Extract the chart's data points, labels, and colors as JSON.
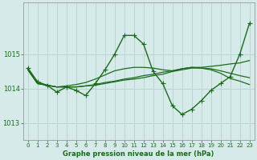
{
  "background_color": "#d6eaea",
  "grid_color": "#b8d4d4",
  "line_color": "#1a6b1a",
  "title": "Graphe pression niveau de la mer (hPa)",
  "xlim": [
    -0.5,
    23.5
  ],
  "ylim": [
    1012.5,
    1016.5
  ],
  "yticks": [
    1013,
    1014,
    1015
  ],
  "xticks": [
    0,
    1,
    2,
    3,
    4,
    5,
    6,
    7,
    8,
    9,
    10,
    11,
    12,
    13,
    14,
    15,
    16,
    17,
    18,
    19,
    20,
    21,
    22,
    23
  ],
  "series": [
    {
      "y": [
        1014.6,
        1014.2,
        1014.1,
        1013.9,
        1014.05,
        1013.95,
        1013.8,
        1014.15,
        1014.55,
        1015.0,
        1015.55,
        1015.55,
        1015.3,
        1014.5,
        1014.15,
        1013.5,
        1013.25,
        1013.4,
        1013.65,
        1013.95,
        1014.15,
        1014.35,
        1015.0,
        1015.9
      ],
      "marker": "+",
      "markersize": 4,
      "linewidth": 1.0
    },
    {
      "y": [
        1014.55,
        1014.15,
        1014.1,
        1014.05,
        1014.05,
        1014.05,
        1014.08,
        1014.1,
        1014.15,
        1014.2,
        1014.25,
        1014.28,
        1014.32,
        1014.38,
        1014.42,
        1014.5,
        1014.55,
        1014.6,
        1014.6,
        1014.55,
        1014.45,
        1014.3,
        1014.22,
        1014.12
      ],
      "marker": null,
      "markersize": 0,
      "linewidth": 0.9
    },
    {
      "y": [
        1014.55,
        1014.15,
        1014.1,
        1014.05,
        1014.05,
        1014.05,
        1014.08,
        1014.12,
        1014.18,
        1014.22,
        1014.28,
        1014.32,
        1014.38,
        1014.42,
        1014.48,
        1014.52,
        1014.58,
        1014.62,
        1014.6,
        1014.58,
        1014.52,
        1014.45,
        1014.38,
        1014.32
      ],
      "marker": null,
      "markersize": 0,
      "linewidth": 0.9
    },
    {
      "y": [
        1014.55,
        1014.15,
        1014.1,
        1014.05,
        1014.08,
        1014.12,
        1014.18,
        1014.28,
        1014.4,
        1014.52,
        1014.58,
        1014.62,
        1014.62,
        1014.6,
        1014.55,
        1014.52,
        1014.58,
        1014.62,
        1014.62,
        1014.65,
        1014.68,
        1014.72,
        1014.75,
        1014.82
      ],
      "marker": null,
      "markersize": 0,
      "linewidth": 0.9
    }
  ]
}
